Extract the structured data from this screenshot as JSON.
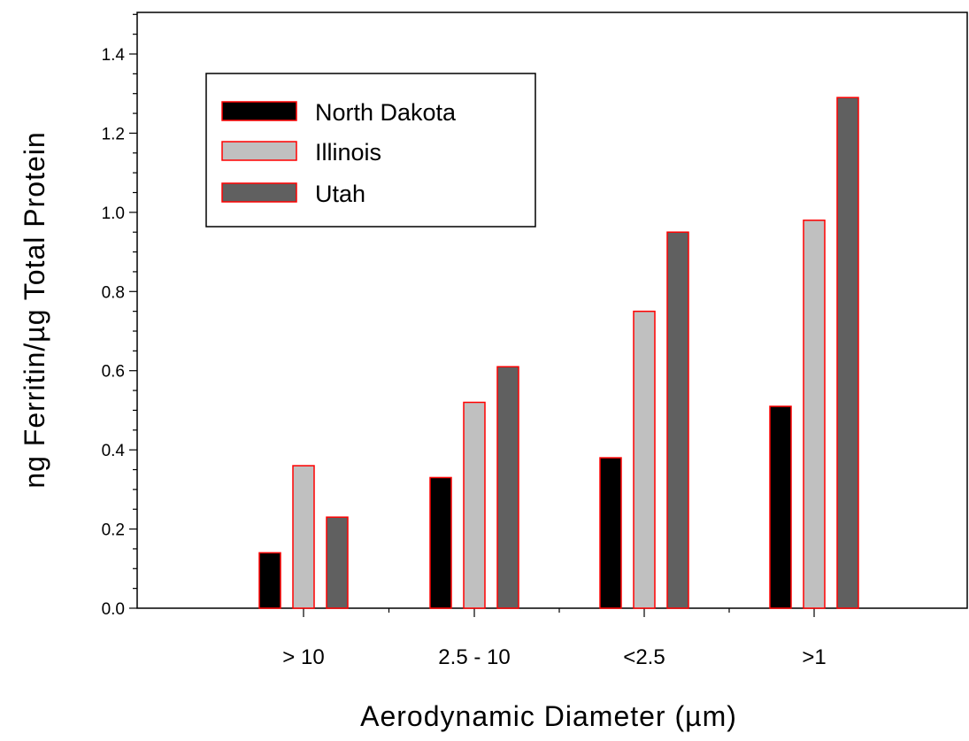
{
  "chart_data": {
    "type": "bar",
    "categories": [
      "> 10",
      "2.5 - 10",
      "<2.5",
      ">1"
    ],
    "series": [
      {
        "name": "North Dakota",
        "values": [
          0.14,
          0.33,
          0.38,
          0.51
        ],
        "color": "#000000"
      },
      {
        "name": "Illinois",
        "values": [
          0.36,
          0.52,
          0.75,
          0.98
        ],
        "color": "#c0c0c0"
      },
      {
        "name": "Utah",
        "values": [
          0.23,
          0.61,
          0.95,
          1.29
        ],
        "color": "#606060"
      }
    ],
    "bar_edge_color": "#ff0000",
    "title": "",
    "xlabel": "Aerodynamic Diameter (µm)",
    "ylabel": "ng Ferritin/µg Total Protein",
    "ylim": [
      0,
      1.4
    ],
    "y_ticks": [
      "0.0",
      "0.2",
      "0.4",
      "0.6",
      "0.8",
      "1.0",
      "1.2",
      "1.4"
    ],
    "grid": false,
    "legend_position": "top-left"
  }
}
